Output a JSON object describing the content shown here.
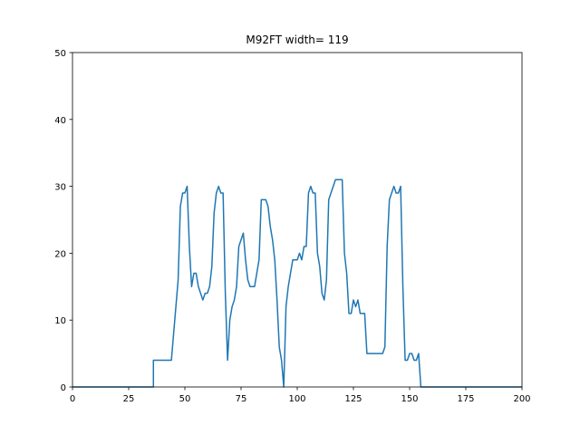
{
  "chart_data": {
    "type": "line",
    "title": "M92FT width= 119",
    "x": [
      0,
      36,
      36,
      44,
      45,
      46,
      47,
      48,
      49,
      50,
      51,
      52,
      53,
      54,
      55,
      56,
      57,
      58,
      59,
      60,
      61,
      62,
      63,
      64,
      65,
      66,
      67,
      68,
      69,
      70,
      71,
      72,
      73,
      74,
      75,
      76,
      77,
      78,
      79,
      80,
      81,
      82,
      83,
      84,
      85,
      86,
      87,
      88,
      89,
      90,
      91,
      92,
      93,
      94,
      95,
      96,
      97,
      98,
      99,
      100,
      101,
      102,
      103,
      104,
      105,
      106,
      107,
      108,
      109,
      110,
      111,
      112,
      113,
      114,
      115,
      116,
      117,
      118,
      119,
      120,
      121,
      122,
      123,
      124,
      125,
      126,
      127,
      128,
      129,
      130,
      131,
      132,
      138,
      139,
      140,
      141,
      142,
      143,
      144,
      145,
      146,
      147,
      148,
      149,
      150,
      151,
      152,
      153,
      154,
      155,
      200
    ],
    "series": [
      {
        "color": "#1f77b4",
        "values": [
          0,
          0,
          4,
          4,
          8,
          12,
          16,
          27,
          29,
          29,
          30,
          21,
          15,
          17,
          17,
          15,
          14,
          13,
          14,
          14,
          15,
          18,
          26,
          29,
          30,
          29,
          29,
          14,
          4,
          10,
          12,
          13,
          15,
          21,
          22,
          23,
          19,
          16,
          15,
          15,
          15,
          17,
          19,
          28,
          28,
          28,
          27,
          24,
          22,
          19,
          13,
          6,
          4,
          0,
          12,
          15,
          17,
          19,
          19,
          19,
          20,
          19,
          21,
          21,
          29,
          30,
          29,
          29,
          20,
          18,
          14,
          13,
          16,
          28,
          29,
          30,
          31,
          31,
          31,
          31,
          20,
          17,
          11,
          11,
          13,
          12,
          13,
          11,
          11,
          11,
          5,
          5,
          5,
          6,
          21,
          28,
          29,
          30,
          29,
          29,
          30,
          15,
          4,
          4,
          5,
          5,
          4,
          4,
          5,
          0,
          0
        ]
      }
    ],
    "xlim": [
      0,
      200
    ],
    "ylim": [
      0,
      50
    ],
    "xticks": [
      0,
      25,
      50,
      75,
      100,
      125,
      150,
      175,
      200
    ],
    "yticks": [
      0,
      10,
      20,
      30,
      40,
      50
    ]
  }
}
